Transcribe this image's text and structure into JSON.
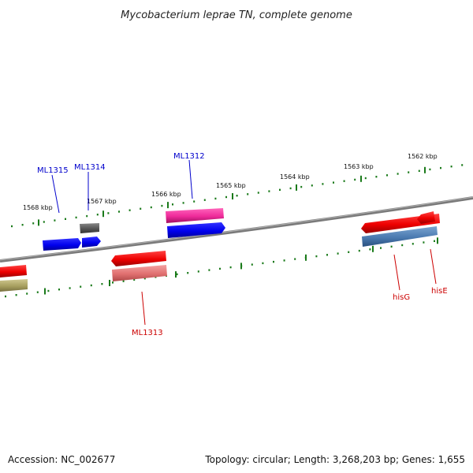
{
  "title": "Mycobacterium leprae TN, complete genome",
  "footer": {
    "accession": "Accession: NC_002677",
    "summary": "Topology: circular; Length: 3,268,203 bp; Genes: 1,655"
  },
  "ticks": [
    "1568 kbp",
    "1567 kbp",
    "1566 kbp",
    "1565 kbp",
    "1564 kbp",
    "1563 kbp",
    "1562 kbp"
  ],
  "genes": [
    {
      "name": "ML1315",
      "color": "#0000cc"
    },
    {
      "name": "ML1314",
      "color": "#0000cc"
    },
    {
      "name": "ML1312",
      "color": "#0000cc"
    },
    {
      "name": "ML1313",
      "color": "#cc0000"
    },
    {
      "name": "hisG",
      "color": "#cc0000"
    },
    {
      "name": "hisE",
      "color": "#cc0000"
    }
  ],
  "colors": {
    "backbone": "#888888",
    "tick": "#1a7a1a",
    "feature_blue": "#0000ee",
    "feature_red": "#ee0000",
    "feature_pink": "#ee2a9a",
    "feature_gray": "#666666",
    "feature_salmon": "#e87878",
    "feature_steel": "#4a7ab0",
    "feature_olive": "#a8a060"
  }
}
